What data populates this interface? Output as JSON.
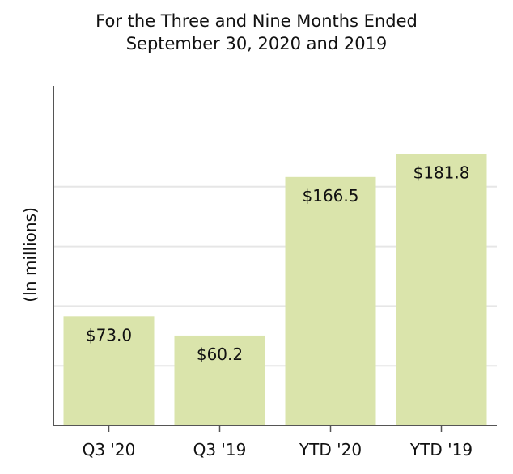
{
  "chart_data": {
    "type": "bar",
    "title": "For the Three and Nine Months Ended",
    "subtitle": "September 30, 2020 and 2019",
    "ylabel": "(In millions)",
    "xlabel": "",
    "categories": [
      "Q3 '20",
      "Q3 '19",
      "YTD '20",
      "YTD '19"
    ],
    "values": [
      73.0,
      60.2,
      166.5,
      181.8
    ],
    "data_labels": [
      "$73.0",
      "$60.2",
      "$166.5",
      "$181.8"
    ],
    "ylim": [
      0,
      200
    ],
    "ytick_values": [
      40,
      80,
      120,
      160
    ],
    "grid": true,
    "colors": {
      "bar": "#dae4ab",
      "grid": "#e6e6e6",
      "axis": "#555555"
    }
  }
}
